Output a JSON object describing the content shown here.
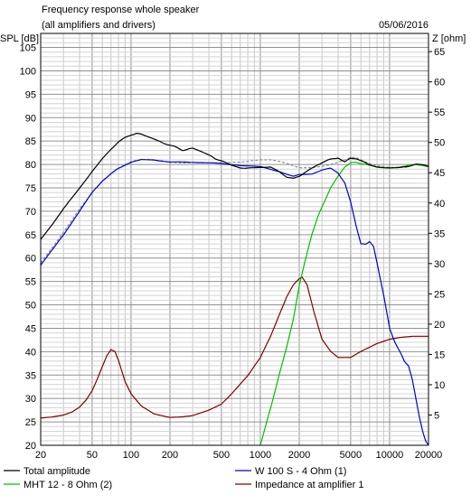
{
  "chart_data": {
    "type": "line",
    "title": "Frequency response whole speaker",
    "subtitle": "(all amplifiers and drivers)",
    "date": "05/06/2016",
    "x_scale": "log",
    "xlim": [
      20,
      20000
    ],
    "x_ticks": [
      20,
      50,
      100,
      200,
      500,
      1000,
      2000,
      5000,
      10000,
      20000
    ],
    "ylabel": "SPL [dB]",
    "ylim": [
      20,
      108
    ],
    "y_ticks": [
      20,
      25,
      30,
      35,
      40,
      45,
      50,
      55,
      60,
      65,
      70,
      75,
      80,
      85,
      90,
      95,
      100,
      105
    ],
    "y2label": "Z [ohm]",
    "y2lim": [
      0,
      68
    ],
    "y2_ticks": [
      5,
      10,
      15,
      20,
      25,
      30,
      35,
      40,
      45,
      50,
      55,
      60,
      65
    ],
    "grid": true,
    "legend_position": "bottom",
    "series": [
      {
        "name": "Total amplitude",
        "axis": "left",
        "color": "#000000",
        "style": "solid",
        "x": [
          20,
          25,
          30,
          40,
          50,
          60,
          70,
          80,
          90,
          100,
          110,
          120,
          140,
          160,
          180,
          200,
          220,
          250,
          280,
          300,
          350,
          400,
          450,
          500,
          600,
          700,
          800,
          900,
          1000,
          1200,
          1400,
          1600,
          1800,
          2000,
          2200,
          2500,
          2800,
          3000,
          3500,
          4000,
          4500,
          5000,
          5500,
          6000,
          7000,
          8000,
          9000,
          10000,
          12000,
          14000,
          16000,
          18000,
          20000
        ],
        "y": [
          64,
          67.5,
          70.5,
          75,
          78.5,
          81.2,
          83.3,
          84.8,
          85.8,
          86.3,
          86.6,
          86.5,
          85.8,
          85.1,
          84.5,
          84.1,
          83.8,
          83,
          83.3,
          83.5,
          82.8,
          82,
          81.2,
          80.8,
          79.8,
          79.3,
          79.2,
          79.3,
          79.4,
          79.4,
          78.5,
          77.3,
          77,
          77.5,
          78.2,
          79.2,
          80,
          80.3,
          81.2,
          81.4,
          80.5,
          81.4,
          81.2,
          80.8,
          80,
          79.4,
          79.3,
          79.3,
          79.3,
          79.6,
          80.1,
          79.9,
          79.6
        ]
      },
      {
        "name": "W 100 S - 4 Ohm (1)",
        "axis": "left",
        "color": "#0000cc",
        "style": "solid",
        "x": [
          20,
          25,
          30,
          40,
          50,
          60,
          70,
          80,
          100,
          120,
          150,
          200,
          250,
          300,
          400,
          500,
          700,
          1000,
          1400,
          1800,
          2000,
          2500,
          3000,
          3500,
          4000,
          4500,
          5000,
          5500,
          6000,
          6500,
          7000,
          7500,
          8000,
          9000,
          10000,
          11000,
          12000,
          13000,
          14000,
          15000,
          16000,
          17000,
          18000,
          19000,
          20000
        ],
        "y": [
          58.5,
          62,
          65,
          70,
          74,
          76.5,
          78,
          79.2,
          80.5,
          81,
          81,
          80.5,
          80.5,
          80.5,
          80.3,
          80.2,
          79.8,
          79.5,
          78.5,
          77.5,
          77.8,
          78,
          78.8,
          79.2,
          78.2,
          76,
          72,
          67,
          63,
          63,
          63.5,
          62.5,
          59,
          52,
          45,
          42,
          40,
          38,
          37,
          34,
          30,
          26,
          23,
          21,
          20
        ]
      },
      {
        "name": "MHT 12 - 8 Ohm (2)",
        "axis": "left",
        "color": "#00c000",
        "style": "solid",
        "x": [
          1000,
          1200,
          1400,
          1600,
          1800,
          2000,
          2200,
          2500,
          2800,
          3000,
          3500,
          4000,
          4500,
          5000,
          5500,
          6000,
          7000,
          8000,
          9000,
          10000,
          12000,
          14000,
          16000,
          18000,
          20000
        ],
        "y": [
          20,
          28,
          35,
          41,
          47,
          54,
          59,
          65,
          69,
          71,
          75,
          77.5,
          79.5,
          80.3,
          80.5,
          80.2,
          79.8,
          79.5,
          79.3,
          79.2,
          79.5,
          79.8,
          80,
          79.8,
          79.5
        ]
      },
      {
        "name": "Impedance at amplifier 1",
        "axis": "right",
        "color": "#800000",
        "style": "solid",
        "x": [
          20,
          25,
          30,
          35,
          40,
          45,
          50,
          55,
          60,
          65,
          70,
          75,
          80,
          90,
          100,
          120,
          150,
          180,
          200,
          250,
          300,
          400,
          500,
          600,
          800,
          1000,
          1200,
          1400,
          1600,
          1800,
          2000,
          2100,
          2300,
          2600,
          3000,
          3500,
          4000,
          4500,
          5000,
          6000,
          7000,
          8000,
          10000,
          12000,
          15000,
          20000
        ],
        "y": [
          4.5,
          4.7,
          5,
          5.5,
          6.3,
          7.5,
          9,
          11,
          13,
          14.8,
          15.8,
          15.5,
          14,
          10.5,
          8.5,
          6.5,
          5.2,
          4.8,
          4.6,
          4.7,
          4.9,
          5.8,
          6.8,
          8.5,
          11.5,
          14.5,
          18,
          21.5,
          24.5,
          26.5,
          27.5,
          27.8,
          26.5,
          22,
          17.5,
          15.5,
          14.5,
          14.5,
          14.5,
          15.5,
          16.2,
          16.8,
          17.5,
          17.8,
          18,
          18
        ]
      },
      {
        "name": "",
        "axis": "left",
        "color": "#888888",
        "style": "dashed",
        "x": [
          20,
          25,
          30,
          40,
          50,
          60,
          70,
          80,
          100,
          120,
          150,
          200,
          250,
          300,
          400,
          500,
          700,
          1000,
          1200,
          1500,
          2000,
          2500,
          3000,
          3500,
          4000,
          4500,
          5000,
          5500,
          6000,
          7000,
          8000,
          10000,
          12000,
          14000
        ],
        "y": [
          59,
          62.5,
          65.5,
          70.5,
          74,
          76.5,
          78,
          79.2,
          80.6,
          81.1,
          81,
          80.5,
          80.3,
          80.4,
          80.3,
          80.4,
          80.5,
          81,
          81,
          80.5,
          79.3,
          79.3,
          79.6,
          80,
          80.5,
          81,
          81.5,
          81.5,
          81,
          80.2,
          79.7,
          79.4,
          79.4,
          79.4
        ]
      }
    ]
  },
  "legend": {
    "total": "Total amplitude",
    "w100": "W 100 S - 4 Ohm (1)",
    "mht": "MHT 12 - 8 Ohm (2)",
    "imp": "Impedance at amplifier 1"
  }
}
